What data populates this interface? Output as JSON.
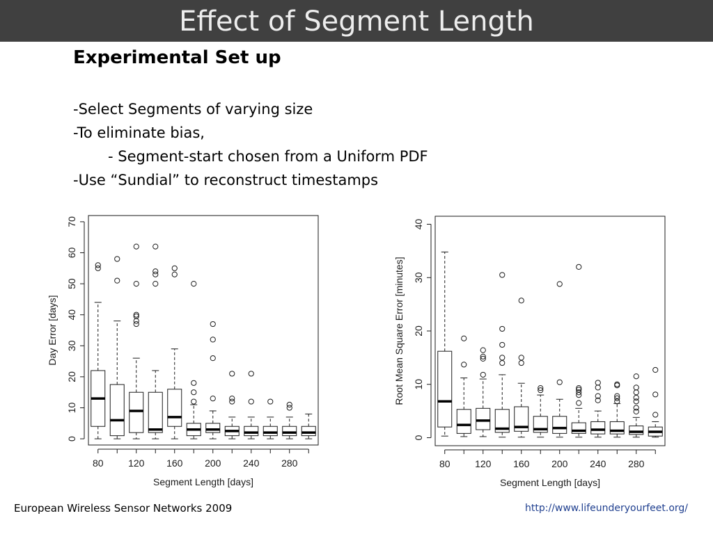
{
  "slide": {
    "title": "Effect of Segment Length",
    "heading": "Experimental Set up",
    "bullets": [
      "-Select Segments of varying size",
      "-To eliminate bias,",
      "- Segment-start chosen from a Uniform  PDF",
      "-Use “Sundial” to reconstruct timestamps"
    ],
    "footer_left": "European Wireless Sensor Networks 2009",
    "footer_right": "http://www.lifeunderyourfeet.org/"
  },
  "chart_data": [
    {
      "type": "box",
      "xlabel": "Segment Length [days]",
      "ylabel": "Day Error [days]",
      "x_tick_labels": [
        "80",
        "120",
        "160",
        "200",
        "240",
        "280"
      ],
      "x_positions": [
        80,
        100,
        120,
        140,
        160,
        180,
        200,
        220,
        240,
        260,
        280,
        300
      ],
      "xlim": [
        70,
        310
      ],
      "ylim": [
        -2,
        72
      ],
      "y_ticks": [
        0,
        10,
        20,
        30,
        40,
        50,
        60,
        70
      ],
      "boxes": [
        {
          "x": 80,
          "min": 0,
          "q1": 4,
          "median": 13,
          "q3": 22,
          "max": 44,
          "outliers": [
            55,
            56
          ]
        },
        {
          "x": 100,
          "min": 0,
          "q1": 1,
          "median": 6,
          "q3": 17.5,
          "max": 38,
          "outliers": [
            51,
            58
          ]
        },
        {
          "x": 120,
          "min": 0,
          "q1": 2,
          "median": 9,
          "q3": 15,
          "max": 26,
          "outliers": [
            37,
            38,
            39.5,
            40,
            50,
            62
          ]
        },
        {
          "x": 140,
          "min": 0,
          "q1": 2,
          "median": 3,
          "q3": 15,
          "max": 22,
          "outliers": [
            50,
            53,
            54,
            62
          ]
        },
        {
          "x": 160,
          "min": 0,
          "q1": 4,
          "median": 7,
          "q3": 16,
          "max": 29,
          "outliers": [
            53,
            55
          ]
        },
        {
          "x": 180,
          "min": 0,
          "q1": 1,
          "median": 3,
          "q3": 5,
          "max": 11,
          "outliers": [
            12,
            15,
            18,
            50
          ]
        },
        {
          "x": 200,
          "min": 0,
          "q1": 2,
          "median": 3,
          "q3": 5,
          "max": 9,
          "outliers": [
            13,
            26,
            32,
            37
          ]
        },
        {
          "x": 220,
          "min": 0,
          "q1": 1,
          "median": 2.5,
          "q3": 4,
          "max": 7,
          "outliers": [
            12,
            13,
            21
          ]
        },
        {
          "x": 240,
          "min": 0,
          "q1": 1,
          "median": 2,
          "q3": 4,
          "max": 7,
          "outliers": [
            12,
            21
          ]
        },
        {
          "x": 260,
          "min": 0,
          "q1": 1,
          "median": 2,
          "q3": 4,
          "max": 7,
          "outliers": [
            12
          ]
        },
        {
          "x": 280,
          "min": 0,
          "q1": 1,
          "median": 2,
          "q3": 4,
          "max": 7,
          "outliers": [
            10,
            11
          ]
        },
        {
          "x": 300,
          "min": 0,
          "q1": 1,
          "median": 2,
          "q3": 4,
          "max": 8,
          "outliers": []
        }
      ]
    },
    {
      "type": "box",
      "xlabel": "Segment Length [days]",
      "ylabel": "Root Mean Square Error [minutes]",
      "x_tick_labels": [
        "80",
        "120",
        "160",
        "200",
        "240",
        "280"
      ],
      "x_positions": [
        80,
        100,
        120,
        140,
        160,
        180,
        200,
        220,
        240,
        260,
        280,
        300
      ],
      "xlim": [
        70,
        310
      ],
      "ylim": [
        -1.5,
        41.5
      ],
      "y_ticks": [
        0,
        10,
        20,
        30,
        40
      ],
      "boxes": [
        {
          "x": 80,
          "min": 0.3,
          "q1": 2,
          "median": 6.8,
          "q3": 16.2,
          "max": 34.8,
          "outliers": []
        },
        {
          "x": 100,
          "min": 0.2,
          "q1": 0.8,
          "median": 2.4,
          "q3": 5.3,
          "max": 11.2,
          "outliers": [
            13.7,
            18.6
          ]
        },
        {
          "x": 120,
          "min": 0.2,
          "q1": 1.5,
          "median": 3.2,
          "q3": 5.5,
          "max": 11,
          "outliers": [
            11.8,
            14.8,
            15.2,
            16.4
          ]
        },
        {
          "x": 140,
          "min": 0.1,
          "q1": 1,
          "median": 1.7,
          "q3": 5.3,
          "max": 11.8,
          "outliers": [
            14,
            15,
            17.4,
            20.4,
            30.5
          ]
        },
        {
          "x": 160,
          "min": 0.1,
          "q1": 1.2,
          "median": 2,
          "q3": 5.8,
          "max": 10.2,
          "outliers": [
            14,
            15,
            25.7
          ]
        },
        {
          "x": 180,
          "min": 0.1,
          "q1": 1,
          "median": 1.6,
          "q3": 4,
          "max": 8,
          "outliers": [
            8.9,
            9.3
          ]
        },
        {
          "x": 200,
          "min": 0.1,
          "q1": 0.8,
          "median": 1.8,
          "q3": 4,
          "max": 7.2,
          "outliers": [
            10.4,
            28.8
          ]
        },
        {
          "x": 220,
          "min": 0.1,
          "q1": 0.8,
          "median": 1.3,
          "q3": 2.8,
          "max": 5.5,
          "outliers": [
            6.5,
            8,
            8.5,
            9,
            9.3,
            32
          ]
        },
        {
          "x": 240,
          "min": 0.1,
          "q1": 0.7,
          "median": 1.5,
          "q3": 3,
          "max": 5,
          "outliers": [
            7,
            7.8,
            9.4,
            10.3
          ]
        },
        {
          "x": 260,
          "min": 0.1,
          "q1": 0.7,
          "median": 1.3,
          "q3": 3,
          "max": 6.4,
          "outliers": [
            6.8,
            7.4,
            7.8,
            9.8,
            10
          ]
        },
        {
          "x": 280,
          "min": 0.1,
          "q1": 0.6,
          "median": 1.1,
          "q3": 2.2,
          "max": 3.8,
          "outliers": [
            4.9,
            5.6,
            6.8,
            7.5,
            8.5,
            9.4,
            11.5
          ]
        },
        {
          "x": 300,
          "min": 0.1,
          "q1": 0.3,
          "median": 1.1,
          "q3": 2,
          "max": 3,
          "outliers": [
            4.3,
            8.1,
            12.7
          ]
        }
      ]
    }
  ]
}
